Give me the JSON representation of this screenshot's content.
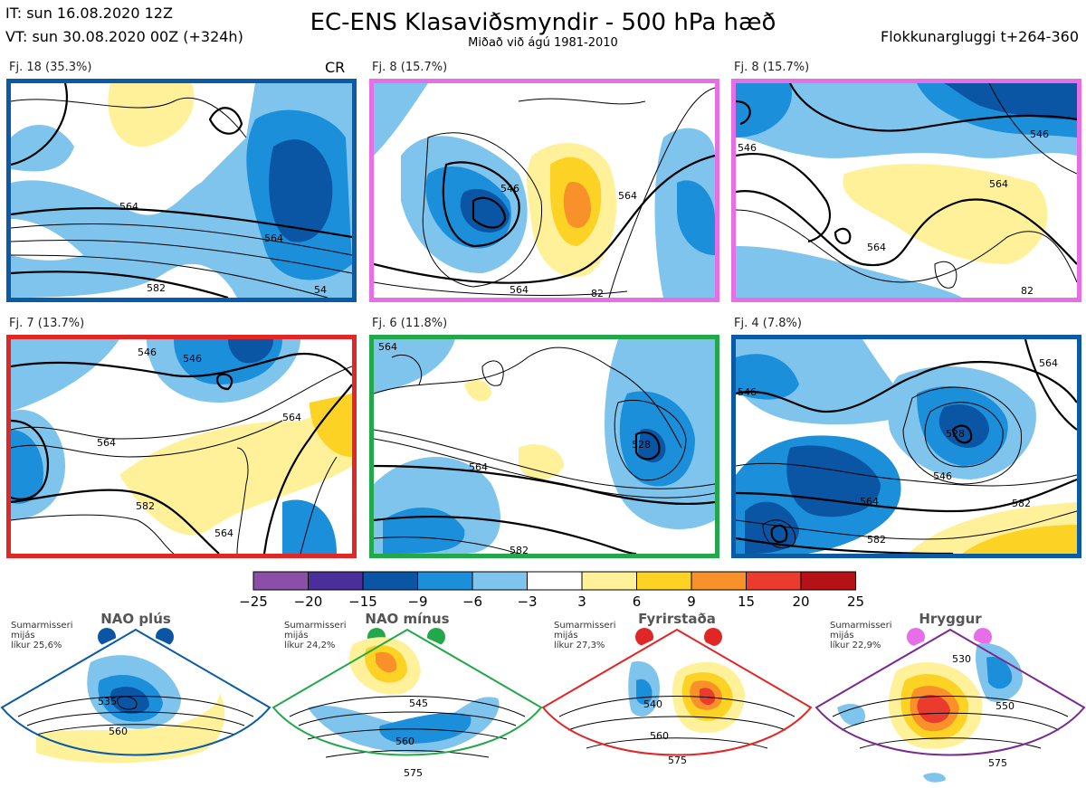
{
  "header": {
    "it": "IT: sun 16.08.2020 12Z",
    "vt": "VT: sun 30.08.2020 00Z  (+324h)",
    "title": "EC-ENS Klasaviðsmyndir - 500 hPa hæð",
    "subtitle": "Miðað við ágú 1981-2010",
    "window": "Flokkunargluggi t+264-360"
  },
  "panels": [
    {
      "label": "Fj. 18 (35.3%)",
      "border": "#0a5aa5",
      "tag": "CR",
      "contours": [
        "564",
        "564",
        "582",
        "54"
      ]
    },
    {
      "label": "Fj. 8 (15.7%)",
      "border": "#e66ee6",
      "contours": [
        "546",
        "564",
        "564",
        "82"
      ]
    },
    {
      "label": "Fj. 8 (15.7%)",
      "border": "#e66ee6",
      "contours": [
        "546",
        "546",
        "564",
        "564",
        "82"
      ]
    },
    {
      "label": "Fj. 7 (13.7%)",
      "border": "#e12626",
      "contours": [
        "546",
        "546",
        "564",
        "564",
        "582",
        "564"
      ]
    },
    {
      "label": "Fj. 6 (11.8%)",
      "border": "#22a84a",
      "contours": [
        "564",
        "564",
        "582",
        "528"
      ]
    },
    {
      "label": "Fj. 4 (7.8%)",
      "border": "#0a5aa5",
      "contours": [
        "546",
        "528",
        "546",
        "564",
        "582",
        "564",
        "582"
      ]
    }
  ],
  "colorbar": {
    "ticks": [
      "−25",
      "−20",
      "−15",
      "−9",
      "−6",
      "−3",
      "3",
      "6",
      "9",
      "15",
      "20",
      "25"
    ],
    "colors": [
      "#8c4fa8",
      "#4a2e9a",
      "#0a56a5",
      "#1c8fdb",
      "#7ec4ec",
      "#ffffff",
      "#fff19a",
      "#fcd225",
      "#f8912a",
      "#ea3b2e",
      "#b51217"
    ]
  },
  "regimes": [
    {
      "title": "NAO plús",
      "note": [
        "Sumarmisseri",
        "mijás",
        "líkur 25,6%"
      ],
      "color": "#0a5aa5",
      "contours": [
        "535",
        "560"
      ]
    },
    {
      "title": "NAO mínus",
      "note": [
        "Sumarmisseri",
        "mijás",
        "líkur 24,2%"
      ],
      "color": "#22a84a",
      "contours": [
        "545",
        "560",
        "575"
      ]
    },
    {
      "title": "Fyrirstaða",
      "note": [
        "Sumarmisseri",
        "mijás",
        "líkur 27,3%"
      ],
      "color": "#e12626",
      "contours": [
        "540",
        "560",
        "575"
      ]
    },
    {
      "title": "Hryggur",
      "note": [
        "Sumarmisseri",
        "mijás",
        "líkur 22,9%"
      ],
      "color": "#e66ee6",
      "border": "#7a2a8f",
      "contours": [
        "530",
        "550",
        "575"
      ]
    }
  ]
}
